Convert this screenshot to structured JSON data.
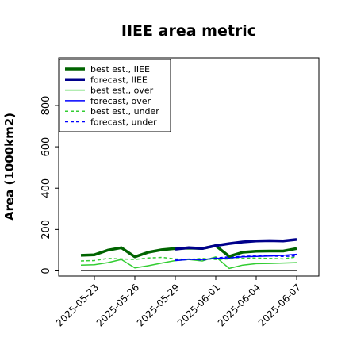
{
  "chart_data": {
    "type": "line",
    "title": "IIEE area metric",
    "ylabel": "Area (1000km2)",
    "xlabel": "",
    "ylim": [
      -25,
      1030
    ],
    "yticks": [
      0,
      200,
      400,
      600,
      800
    ],
    "x": [
      "2025-05-22",
      "2025-05-23",
      "2025-05-24",
      "2025-05-25",
      "2025-05-26",
      "2025-05-27",
      "2025-05-28",
      "2025-05-29",
      "2025-05-30",
      "2025-05-31",
      "2025-06-01",
      "2025-06-02",
      "2025-06-03",
      "2025-06-04",
      "2025-06-05",
      "2025-06-06",
      "2025-06-07"
    ],
    "xtick_labels": [
      "2025-05-23",
      "2025-05-26",
      "2025-05-29",
      "2025-06-01",
      "2025-06-04",
      "2025-06-07"
    ],
    "highlight_tick": "2025-05-29",
    "highlight_color": "#228b22",
    "grid": false,
    "legend_position": "upper-left",
    "series": [
      {
        "name": "best est., IIEE",
        "color": "#006400",
        "style": "solid",
        "width": 3.5,
        "values": [
          75,
          78,
          100,
          112,
          68,
          90,
          102,
          108,
          110,
          108,
          122,
          70,
          90,
          95,
          96,
          96,
          108
        ]
      },
      {
        "name": "forecast, IIEE",
        "color": "#00008b",
        "style": "solid",
        "width": 3.5,
        "values": [
          null,
          null,
          null,
          null,
          null,
          null,
          null,
          105,
          112,
          108,
          122,
          132,
          140,
          145,
          146,
          145,
          152
        ]
      },
      {
        "name": "best est., over",
        "color": "#32cd32",
        "style": "solid",
        "width": 1.5,
        "values": [
          28,
          30,
          40,
          55,
          14,
          25,
          38,
          50,
          55,
          48,
          68,
          12,
          28,
          35,
          36,
          38,
          40
        ]
      },
      {
        "name": "forecast, over",
        "color": "#0000ff",
        "style": "solid",
        "width": 1.5,
        "values": [
          null,
          null,
          null,
          null,
          null,
          null,
          null,
          50,
          55,
          55,
          60,
          62,
          68,
          70,
          72,
          75,
          80
        ]
      },
      {
        "name": "best est., under",
        "color": "#32cd32",
        "style": "dashed",
        "width": 1.5,
        "values": [
          48,
          50,
          60,
          58,
          55,
          62,
          65,
          58,
          55,
          60,
          55,
          58,
          60,
          62,
          60,
          58,
          68
        ]
      },
      {
        "name": "forecast, under",
        "color": "#0000ff",
        "style": "dashed",
        "width": 1.5,
        "values": [
          null,
          null,
          null,
          null,
          null,
          null,
          null,
          55,
          57,
          52,
          62,
          68,
          70,
          72,
          72,
          70,
          72
        ]
      }
    ]
  }
}
